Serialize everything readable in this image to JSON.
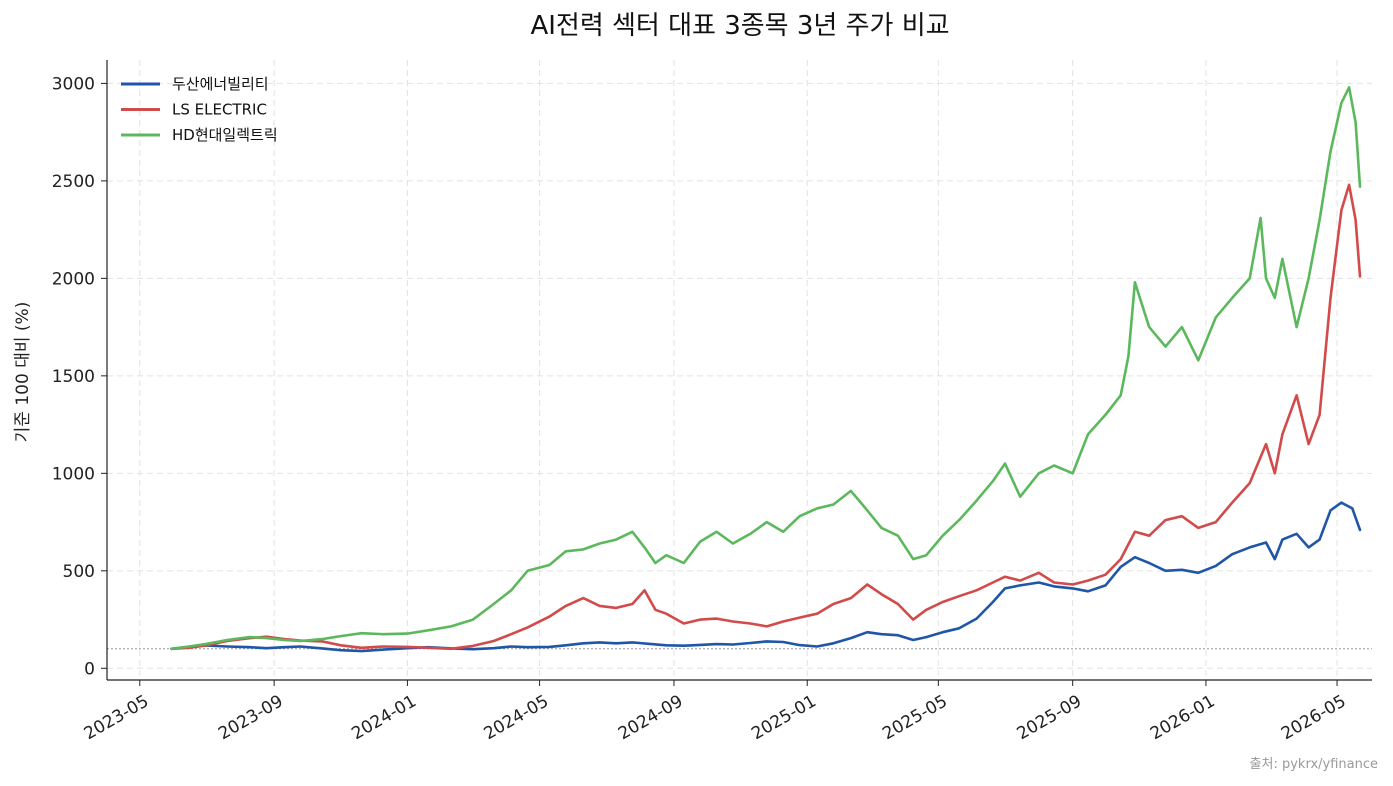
{
  "chart_data": {
    "type": "line",
    "title": "AI전력 섹터 대표 3종목 3년 주가 비교",
    "xlabel": "",
    "ylabel": "기준 100 대비 (%)",
    "xlim": [
      "2023-04-01",
      "2026-06-02"
    ],
    "ylim": [
      -60,
      3120
    ],
    "x_ticks": [
      "2023-05",
      "2023-09",
      "2024-01",
      "2024-05",
      "2024-09",
      "2025-01",
      "2025-05",
      "2025-09",
      "2026-01",
      "2026-05"
    ],
    "y_ticks": [
      0,
      500,
      1000,
      1500,
      2000,
      2500,
      3000
    ],
    "grid": true,
    "legend_position": "top-left",
    "baseline": 100,
    "source": "출처: pykrx/yfinance",
    "series": [
      {
        "name": "두산에너빌리티",
        "color": "#1f56a8",
        "points": [
          [
            "2023-05-30",
            100
          ],
          [
            "2023-06-15",
            110
          ],
          [
            "2023-07-01",
            117
          ],
          [
            "2023-07-20",
            112
          ],
          [
            "2023-08-10",
            108
          ],
          [
            "2023-08-25",
            103
          ],
          [
            "2023-09-10",
            108
          ],
          [
            "2023-09-25",
            112
          ],
          [
            "2023-10-15",
            102
          ],
          [
            "2023-11-01",
            93
          ],
          [
            "2023-11-20",
            88
          ],
          [
            "2023-12-10",
            96
          ],
          [
            "2024-01-01",
            103
          ],
          [
            "2024-01-20",
            108
          ],
          [
            "2024-02-10",
            102
          ],
          [
            "2024-03-01",
            98
          ],
          [
            "2024-03-20",
            103
          ],
          [
            "2024-04-05",
            112
          ],
          [
            "2024-04-20",
            108
          ],
          [
            "2024-05-10",
            110
          ],
          [
            "2024-05-25",
            118
          ],
          [
            "2024-06-10",
            128
          ],
          [
            "2024-06-25",
            133
          ],
          [
            "2024-07-10",
            128
          ],
          [
            "2024-07-25",
            133
          ],
          [
            "2024-08-10",
            125
          ],
          [
            "2024-08-25",
            118
          ],
          [
            "2024-09-10",
            116
          ],
          [
            "2024-09-25",
            120
          ],
          [
            "2024-10-10",
            124
          ],
          [
            "2024-10-25",
            122
          ],
          [
            "2024-11-10",
            130
          ],
          [
            "2024-11-25",
            138
          ],
          [
            "2024-12-10",
            135
          ],
          [
            "2024-12-25",
            119
          ],
          [
            "2025-01-10",
            112
          ],
          [
            "2025-01-25",
            128
          ],
          [
            "2025-02-10",
            155
          ],
          [
            "2025-02-25",
            185
          ],
          [
            "2025-03-10",
            175
          ],
          [
            "2025-03-25",
            170
          ],
          [
            "2025-04-08",
            145
          ],
          [
            "2025-04-20",
            160
          ],
          [
            "2025-05-05",
            185
          ],
          [
            "2025-05-20",
            205
          ],
          [
            "2025-06-05",
            255
          ],
          [
            "2025-06-20",
            340
          ],
          [
            "2025-07-01",
            410
          ],
          [
            "2025-07-15",
            425
          ],
          [
            "2025-08-01",
            440
          ],
          [
            "2025-08-15",
            420
          ],
          [
            "2025-09-01",
            410
          ],
          [
            "2025-09-15",
            395
          ],
          [
            "2025-10-01",
            425
          ],
          [
            "2025-10-15",
            520
          ],
          [
            "2025-10-28",
            570
          ],
          [
            "2025-11-10",
            540
          ],
          [
            "2025-11-25",
            500
          ],
          [
            "2025-12-10",
            505
          ],
          [
            "2025-12-25",
            490
          ],
          [
            "2026-01-10",
            525
          ],
          [
            "2026-01-25",
            585
          ],
          [
            "2026-02-10",
            620
          ],
          [
            "2026-02-25",
            645
          ],
          [
            "2026-03-05",
            560
          ],
          [
            "2026-03-12",
            660
          ],
          [
            "2026-03-25",
            690
          ],
          [
            "2026-04-05",
            620
          ],
          [
            "2026-04-15",
            660
          ],
          [
            "2026-04-25",
            810
          ],
          [
            "2026-05-05",
            850
          ],
          [
            "2026-05-15",
            820
          ],
          [
            "2026-05-22",
            710
          ]
        ]
      },
      {
        "name": "LS ELECTRIC",
        "color": "#d24b4b",
        "points": [
          [
            "2023-05-30",
            100
          ],
          [
            "2023-06-15",
            105
          ],
          [
            "2023-07-01",
            118
          ],
          [
            "2023-07-20",
            140
          ],
          [
            "2023-08-10",
            155
          ],
          [
            "2023-08-25",
            162
          ],
          [
            "2023-09-10",
            150
          ],
          [
            "2023-09-25",
            142
          ],
          [
            "2023-10-15",
            138
          ],
          [
            "2023-11-01",
            118
          ],
          [
            "2023-11-20",
            105
          ],
          [
            "2023-12-10",
            112
          ],
          [
            "2024-01-01",
            110
          ],
          [
            "2024-01-20",
            105
          ],
          [
            "2024-02-10",
            100
          ],
          [
            "2024-03-01",
            115
          ],
          [
            "2024-03-20",
            140
          ],
          [
            "2024-04-05",
            175
          ],
          [
            "2024-04-20",
            210
          ],
          [
            "2024-05-10",
            265
          ],
          [
            "2024-05-25",
            320
          ],
          [
            "2024-06-10",
            360
          ],
          [
            "2024-06-25",
            320
          ],
          [
            "2024-07-10",
            310
          ],
          [
            "2024-07-25",
            330
          ],
          [
            "2024-08-05",
            400
          ],
          [
            "2024-08-15",
            300
          ],
          [
            "2024-08-25",
            280
          ],
          [
            "2024-09-10",
            230
          ],
          [
            "2024-09-25",
            250
          ],
          [
            "2024-10-10",
            255
          ],
          [
            "2024-10-25",
            240
          ],
          [
            "2024-11-10",
            230
          ],
          [
            "2024-11-25",
            215
          ],
          [
            "2024-12-10",
            240
          ],
          [
            "2024-12-25",
            260
          ],
          [
            "2025-01-10",
            280
          ],
          [
            "2025-01-25",
            330
          ],
          [
            "2025-02-10",
            360
          ],
          [
            "2025-02-25",
            430
          ],
          [
            "2025-03-10",
            380
          ],
          [
            "2025-03-25",
            330
          ],
          [
            "2025-04-08",
            250
          ],
          [
            "2025-04-20",
            300
          ],
          [
            "2025-05-05",
            340
          ],
          [
            "2025-05-20",
            370
          ],
          [
            "2025-06-05",
            400
          ],
          [
            "2025-06-20",
            440
          ],
          [
            "2025-07-01",
            470
          ],
          [
            "2025-07-15",
            450
          ],
          [
            "2025-08-01",
            490
          ],
          [
            "2025-08-15",
            440
          ],
          [
            "2025-09-01",
            430
          ],
          [
            "2025-09-15",
            450
          ],
          [
            "2025-10-01",
            480
          ],
          [
            "2025-10-15",
            560
          ],
          [
            "2025-10-28",
            700
          ],
          [
            "2025-11-10",
            680
          ],
          [
            "2025-11-25",
            760
          ],
          [
            "2025-12-10",
            780
          ],
          [
            "2025-12-25",
            720
          ],
          [
            "2026-01-10",
            750
          ],
          [
            "2026-01-25",
            850
          ],
          [
            "2026-02-10",
            950
          ],
          [
            "2026-02-25",
            1150
          ],
          [
            "2026-03-05",
            1000
          ],
          [
            "2026-03-12",
            1200
          ],
          [
            "2026-03-25",
            1400
          ],
          [
            "2026-04-05",
            1150
          ],
          [
            "2026-04-15",
            1300
          ],
          [
            "2026-04-25",
            1900
          ],
          [
            "2026-05-05",
            2350
          ],
          [
            "2026-05-12",
            2480
          ],
          [
            "2026-05-18",
            2300
          ],
          [
            "2026-05-22",
            2010
          ]
        ]
      },
      {
        "name": "HD현대일렉트릭",
        "color": "#5cb85c",
        "points": [
          [
            "2023-05-30",
            100
          ],
          [
            "2023-06-15",
            112
          ],
          [
            "2023-07-01",
            125
          ],
          [
            "2023-07-20",
            145
          ],
          [
            "2023-08-10",
            160
          ],
          [
            "2023-08-25",
            155
          ],
          [
            "2023-09-10",
            145
          ],
          [
            "2023-09-25",
            140
          ],
          [
            "2023-10-15",
            150
          ],
          [
            "2023-11-01",
            165
          ],
          [
            "2023-11-20",
            180
          ],
          [
            "2023-12-10",
            175
          ],
          [
            "2024-01-01",
            178
          ],
          [
            "2024-01-20",
            195
          ],
          [
            "2024-02-10",
            215
          ],
          [
            "2024-03-01",
            250
          ],
          [
            "2024-03-20",
            330
          ],
          [
            "2024-04-05",
            400
          ],
          [
            "2024-04-20",
            500
          ],
          [
            "2024-05-10",
            530
          ],
          [
            "2024-05-25",
            600
          ],
          [
            "2024-06-10",
            610
          ],
          [
            "2024-06-25",
            640
          ],
          [
            "2024-07-10",
            660
          ],
          [
            "2024-07-25",
            700
          ],
          [
            "2024-08-05",
            620
          ],
          [
            "2024-08-15",
            540
          ],
          [
            "2024-08-25",
            580
          ],
          [
            "2024-09-10",
            540
          ],
          [
            "2024-09-25",
            650
          ],
          [
            "2024-10-10",
            700
          ],
          [
            "2024-10-25",
            640
          ],
          [
            "2024-11-10",
            690
          ],
          [
            "2024-11-25",
            750
          ],
          [
            "2024-12-10",
            700
          ],
          [
            "2024-12-25",
            780
          ],
          [
            "2025-01-10",
            820
          ],
          [
            "2025-01-25",
            840
          ],
          [
            "2025-02-10",
            910
          ],
          [
            "2025-02-25",
            810
          ],
          [
            "2025-03-10",
            720
          ],
          [
            "2025-03-25",
            680
          ],
          [
            "2025-04-08",
            560
          ],
          [
            "2025-04-20",
            580
          ],
          [
            "2025-05-05",
            680
          ],
          [
            "2025-05-20",
            760
          ],
          [
            "2025-06-05",
            860
          ],
          [
            "2025-06-20",
            960
          ],
          [
            "2025-07-01",
            1050
          ],
          [
            "2025-07-15",
            880
          ],
          [
            "2025-08-01",
            1000
          ],
          [
            "2025-08-15",
            1040
          ],
          [
            "2025-09-01",
            1000
          ],
          [
            "2025-09-15",
            1200
          ],
          [
            "2025-10-01",
            1300
          ],
          [
            "2025-10-15",
            1400
          ],
          [
            "2025-10-22",
            1600
          ],
          [
            "2025-10-28",
            1980
          ],
          [
            "2025-11-10",
            1750
          ],
          [
            "2025-11-25",
            1650
          ],
          [
            "2025-12-10",
            1750
          ],
          [
            "2025-12-25",
            1580
          ],
          [
            "2026-01-10",
            1800
          ],
          [
            "2026-01-25",
            1900
          ],
          [
            "2026-02-10",
            2000
          ],
          [
            "2026-02-20",
            2310
          ],
          [
            "2026-02-25",
            2000
          ],
          [
            "2026-03-05",
            1900
          ],
          [
            "2026-03-12",
            2100
          ],
          [
            "2026-03-25",
            1750
          ],
          [
            "2026-04-05",
            2000
          ],
          [
            "2026-04-15",
            2300
          ],
          [
            "2026-04-25",
            2650
          ],
          [
            "2026-05-05",
            2900
          ],
          [
            "2026-05-12",
            2980
          ],
          [
            "2026-05-18",
            2800
          ],
          [
            "2026-05-22",
            2470
          ]
        ]
      }
    ]
  }
}
